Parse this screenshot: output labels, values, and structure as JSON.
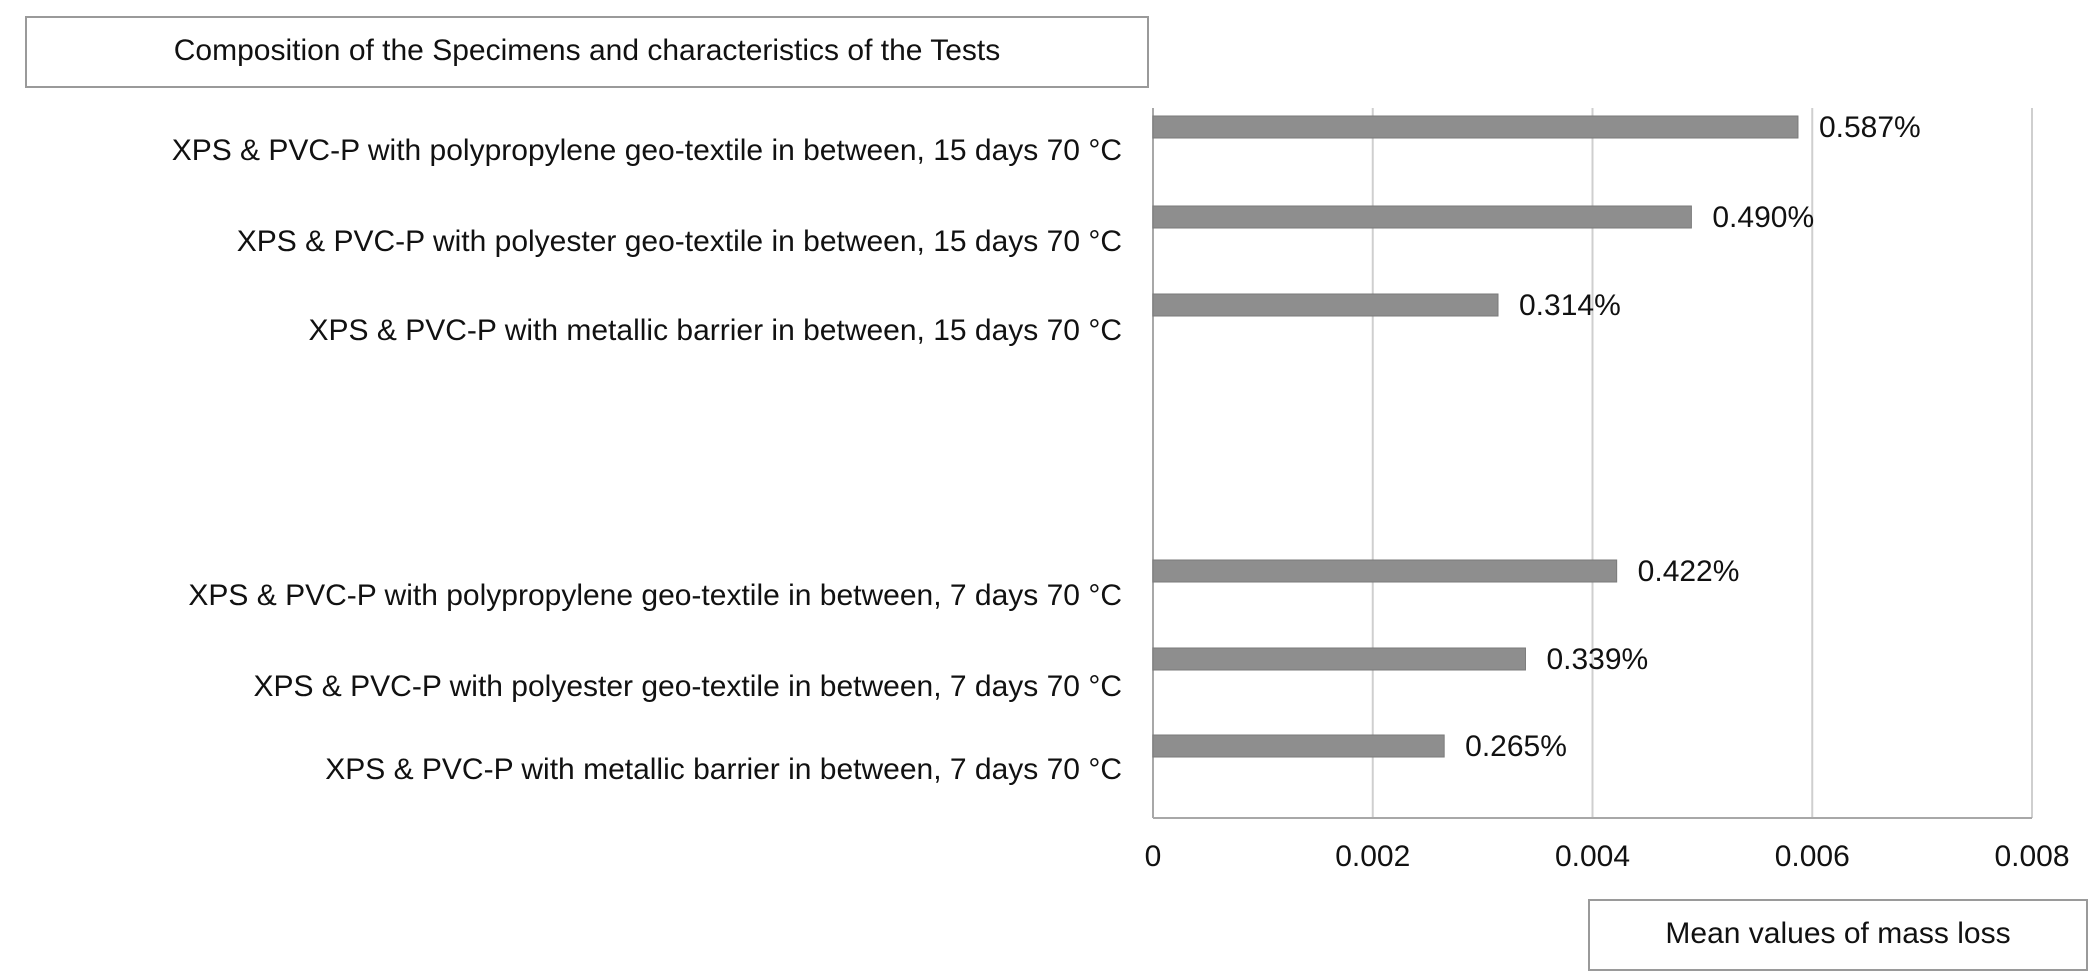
{
  "chart_data": {
    "type": "bar",
    "orientation": "horizontal",
    "title": "Composition of the Specimens and characteristics of the Tests",
    "xlabel": "Mean values of mass loss",
    "ylabel": "",
    "xlim": [
      0,
      0.008
    ],
    "x_ticks": [
      "0",
      "0.002",
      "0.004",
      "0.006",
      "0.008"
    ],
    "grid": true,
    "bar_color": "#8e8e8e",
    "groups": [
      {
        "categories": [
          "XPS & PVC-P with polypropylene geo-textile in between, 15 days 70 °C",
          "XPS & PVC-P with polyester geo-textile in between, 15 days 70 °C",
          "XPS & PVC-P with metallic barrier in between, 15 days 70 °C"
        ],
        "values": [
          0.00587,
          0.0049,
          0.00314
        ],
        "data_labels": [
          "0.587%",
          "0.490%",
          "0.314%"
        ]
      },
      {
        "categories": [
          "XPS & PVC-P with polypropylene geo-textile in between, 7 days 70 °C",
          "XPS & PVC-P with polyester geo-textile in between, 7 days 70 °C",
          "XPS & PVC-P with metallic barrier in between, 7 days 70 °C"
        ],
        "values": [
          0.00422,
          0.00339,
          0.00265
        ],
        "data_labels": [
          "0.422%",
          "0.339%",
          "0.265%"
        ]
      }
    ]
  }
}
